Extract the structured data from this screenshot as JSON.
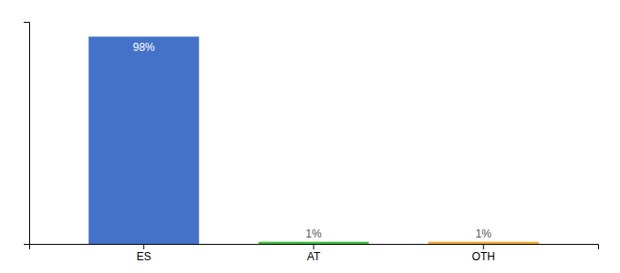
{
  "chart_data": {
    "type": "bar",
    "categories": [
      "ES",
      "AT",
      "OTH"
    ],
    "values": [
      98,
      1,
      1
    ],
    "value_labels": [
      "98%",
      "1%",
      "1%"
    ],
    "colors": [
      "#4472c9",
      "#3dbd3d",
      "#f0a830"
    ],
    "data_labels": true,
    "ylim": [
      0,
      105
    ],
    "tick_labels": "x"
  }
}
